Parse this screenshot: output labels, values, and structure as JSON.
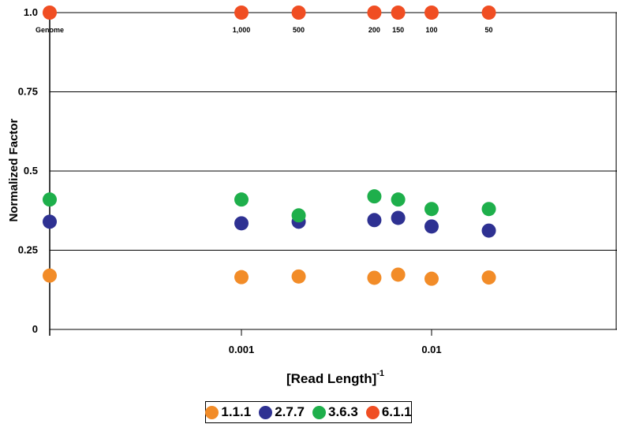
{
  "chart_data": {
    "type": "scatter",
    "xlabel": "[Read Length]",
    "xlabel_superscript": "-1",
    "ylabel": "Normalized Factor",
    "x_scale": "log",
    "ylim": [
      0,
      1.0
    ],
    "y_ticks": [
      {
        "value": 0,
        "label": "0"
      },
      {
        "value": 0.25,
        "label": "0.25"
      },
      {
        "value": 0.5,
        "label": "0.5"
      },
      {
        "value": 0.75,
        "label": "0.75"
      },
      {
        "value": 1.0,
        "label": "1.0"
      }
    ],
    "x_ticks": [
      {
        "value": 0.001,
        "label": "0.001"
      },
      {
        "value": 0.01,
        "label": "0.01"
      }
    ],
    "top_labels": [
      "Genome",
      "1,000",
      "500",
      "200",
      "150",
      "100",
      "50"
    ],
    "x": [
      "Genome",
      0.001,
      0.002,
      0.005,
      0.00667,
      0.01,
      0.02
    ],
    "grid": "horizontal",
    "legend_position": "bottom",
    "series": [
      {
        "name": "1.1.1",
        "color": "#F28C28",
        "values": [
          0.17,
          0.165,
          0.167,
          0.163,
          0.173,
          0.16,
          0.164
        ]
      },
      {
        "name": "2.7.7",
        "color": "#2E3192",
        "values": [
          0.34,
          0.335,
          0.34,
          0.345,
          0.352,
          0.325,
          0.312
        ]
      },
      {
        "name": "3.6.3",
        "color": "#1EAF4B",
        "values": [
          0.41,
          0.41,
          0.36,
          0.42,
          0.41,
          0.38,
          0.38
        ]
      },
      {
        "name": "6.1.1",
        "color": "#F04E23",
        "values": [
          1.0,
          1.0,
          1.0,
          1.0,
          1.0,
          1.0,
          1.0
        ]
      }
    ]
  }
}
